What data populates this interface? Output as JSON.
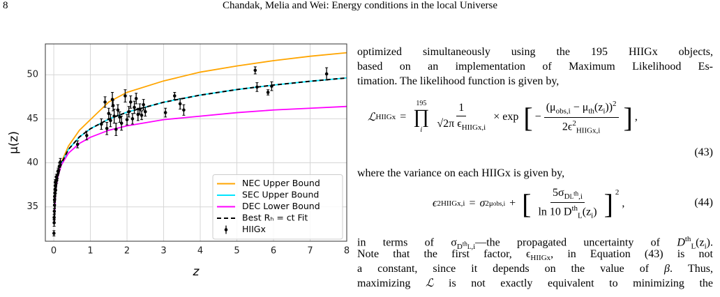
{
  "header": {
    "page": "8",
    "running_title": "Chandak, Melia and Wei: Energy conditions in the local Universe"
  },
  "chart_data": {
    "type": "line",
    "x_label": "z",
    "y_label": "μ(z)",
    "xlim": [
      -0.23,
      8
    ],
    "ylim": [
      31.1,
      53.5
    ],
    "xticks": [
      0,
      1,
      2,
      3,
      4,
      5,
      6,
      7,
      8
    ],
    "yticks": [
      35,
      40,
      45,
      50
    ],
    "grid": true,
    "legend": "lower right",
    "x": [
      0.01,
      0.05,
      0.1,
      0.2,
      0.4,
      0.7,
      1,
      1.5,
      2,
      3,
      4,
      5,
      6,
      7,
      8
    ],
    "series": [
      {
        "name": "NEC Upper Bound",
        "color": "#ffa500",
        "values": [
          33.17,
          36.73,
          38.31,
          40.0,
          41.9,
          43.7,
          44.9,
          46.9,
          48.0,
          49.3,
          50.3,
          51.0,
          51.6,
          52.1,
          52.5
        ]
      },
      {
        "name": "SEC Upper Bound",
        "color": "#00e5ff",
        "values": [
          33.17,
          36.71,
          38.26,
          39.86,
          41.52,
          42.94,
          43.87,
          44.96,
          45.75,
          46.88,
          47.69,
          48.32,
          48.83,
          49.26,
          49.64
        ]
      },
      {
        "name": "DEC Lower Bound",
        "color": "#ff00ff",
        "values": [
          33.17,
          36.7,
          38.22,
          39.7,
          41.1,
          42.2,
          42.9,
          43.7,
          44.2,
          44.9,
          45.3,
          45.7,
          46.0,
          46.2,
          46.4
        ]
      },
      {
        "name": "Best Rₕ = ct Fit",
        "color": "#000000",
        "linestyle": "dashed",
        "values": [
          33.17,
          36.71,
          38.26,
          39.86,
          41.52,
          42.94,
          43.87,
          44.96,
          45.75,
          46.88,
          47.69,
          48.32,
          48.83,
          49.26,
          49.64
        ]
      },
      {
        "name": "HIIGx",
        "color": "#000000",
        "type": "errorbar",
        "x": [
          0.005,
          0.01,
          0.01,
          0.015,
          0.02,
          0.02,
          0.025,
          0.03,
          0.035,
          0.04,
          0.045,
          0.05,
          0.06,
          0.07,
          0.08,
          0.1,
          0.12,
          0.15,
          0.18,
          0.65,
          0.9,
          1.3,
          1.4,
          1.45,
          1.5,
          1.55,
          1.6,
          1.62,
          1.65,
          1.7,
          1.75,
          1.8,
          1.85,
          1.95,
          2.0,
          2.05,
          2.1,
          2.15,
          2.2,
          2.25,
          2.3,
          2.35,
          2.4,
          2.45,
          2.5,
          3.05,
          3.3,
          3.45,
          3.55,
          5.5,
          5.55,
          5.85,
          5.95,
          7.45
        ],
        "values": [
          32.0,
          33.2,
          33.8,
          34.5,
          35.2,
          35.8,
          36.2,
          36.6,
          37.0,
          37.4,
          37.8,
          36.9,
          38.0,
          38.4,
          38.0,
          38.6,
          39.1,
          39.6,
          40.1,
          42.1,
          43.1,
          44.4,
          46.9,
          43.9,
          45.6,
          44.8,
          47.2,
          46.5,
          45.3,
          43.8,
          46.0,
          45.2,
          44.5,
          47.6,
          44.9,
          45.8,
          46.9,
          45.0,
          46.3,
          47.3,
          45.5,
          46.1,
          45.4,
          46.6,
          45.8,
          45.7,
          47.6,
          46.7,
          46.0,
          50.5,
          48.6,
          48.0,
          48.7,
          50.1
        ],
        "errors": [
          0.3,
          0.4,
          0.3,
          0.3,
          0.4,
          0.3,
          0.3,
          0.3,
          0.4,
          0.3,
          0.3,
          0.4,
          0.4,
          0.3,
          0.3,
          0.4,
          0.3,
          0.4,
          0.4,
          0.4,
          0.5,
          0.6,
          0.6,
          0.7,
          0.6,
          0.7,
          0.8,
          0.6,
          0.8,
          0.7,
          0.6,
          0.6,
          0.8,
          0.7,
          0.6,
          0.6,
          0.7,
          0.6,
          0.7,
          0.6,
          0.7,
          0.6,
          0.5,
          0.6,
          0.5,
          0.5,
          0.4,
          0.6,
          0.6,
          0.4,
          0.5,
          0.3,
          0.5,
          0.7
        ]
      }
    ]
  },
  "body": {
    "para1": [
      "optimized simultaneously using the 195 HIIGx objects,",
      "based on an implementation of Maximum Likelihood Es-",
      "timation. The likelihood function is given by,"
    ],
    "para2": [
      "where the variance on each HIIGx is given by,"
    ],
    "para3": [
      [
        "in terms of σ",
        "D",
        "L",
        "th",
        ",i",
        "—the propagated uncertainty of ",
        "D",
        "th",
        "L",
        "(z",
        "i",
        ")."
      ],
      [
        "Note that the first factor, ϵ",
        "HIIGx",
        ", in Equation (43) is not"
      ],
      [
        "a constant, since it depends on the value of ",
        "β",
        ". Thus,"
      ],
      [
        "maximizing ",
        "ℒ",
        " is not exactly equivalent to minimizing the"
      ]
    ]
  },
  "equations": [
    {
      "lhs": "ℒ",
      "lhs_sub": "HIIGx",
      "equals": "=",
      "prod": "∏",
      "prod_sup": "195",
      "prod_sub": "i",
      "frac1_num": "1",
      "frac1_den": "√2π ϵ",
      "frac1_den_sub": "HIIGx,i",
      "times": "× exp",
      "bracket_l": "[",
      "minus": "−",
      "n1": "(μ",
      "n_sub1": "obs,i",
      "n_mid": " − μ",
      "n_sub2": "th",
      "n_end": "(z",
      "n_sub3": "i",
      "n_close": "))",
      "n_sup": "2",
      "d1": "2ϵ",
      "d_sup": "2",
      "d_sub": "HIIGx,i",
      "bracket_r": "]",
      "comma": ",",
      "number": "(43)"
    },
    {
      "lhs": "ϵ",
      "lhs_sup": "2",
      "lhs_sub": "HIIGx,i",
      "equals": "=",
      "t1": "σ",
      "t1_sup": "2",
      "t1_sub": "μ",
      "t1_subsub": "obs,i",
      "plus": "+",
      "bracket_l": "[",
      "num": "5σ",
      "num_sub": "D",
      "num_subsub": "L",
      "num_subsup": "th",
      "num_sub_end": ",i",
      "den": "ln 10 D",
      "den_sup": "th",
      "den_sub": "L",
      "den_end": "(z",
      "den_sub2": "i",
      "den_close": ")",
      "bracket_r": "]",
      "sup": "2",
      "comma": ",",
      "number": "(44)"
    }
  ]
}
